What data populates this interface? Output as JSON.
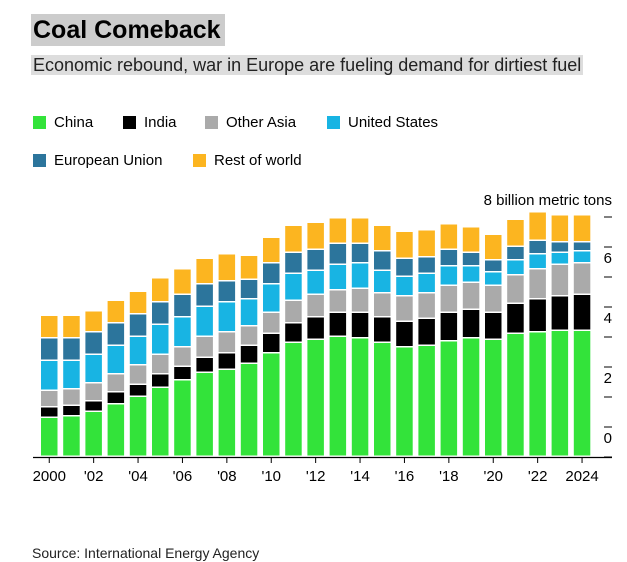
{
  "title": "Coal Comeback",
  "subtitle": "Economic rebound, war in Europe are fueling demand for dirtiest fuel",
  "source": "Source: International Energy Agency",
  "chart_data": {
    "type": "bar",
    "stacked": true,
    "unit_label": "8 billion metric tons",
    "ylim": [
      0,
      8
    ],
    "yticks": [
      0,
      2,
      4,
      6
    ],
    "x": [
      2000,
      2001,
      2002,
      2003,
      2004,
      2005,
      2006,
      2007,
      2008,
      2009,
      2010,
      2011,
      2012,
      2013,
      2014,
      2015,
      2016,
      2017,
      2018,
      2019,
      2020,
      2021,
      2022,
      2023,
      2024
    ],
    "xtick_labels": [
      "2000",
      "'02",
      "'04",
      "'06",
      "'08",
      "'10",
      "'12",
      "'14",
      "'16",
      "'18",
      "'20",
      "'22",
      "2024"
    ],
    "xtick_years": [
      2000,
      2002,
      2004,
      2006,
      2008,
      2010,
      2012,
      2014,
      2016,
      2018,
      2020,
      2022,
      2024
    ],
    "legend_position": "top",
    "series": [
      {
        "name": "China",
        "color": "#33e33a",
        "values": [
          1.3,
          1.35,
          1.5,
          1.75,
          2.0,
          2.3,
          2.55,
          2.8,
          2.9,
          3.1,
          3.45,
          3.8,
          3.9,
          4.0,
          3.95,
          3.8,
          3.65,
          3.7,
          3.85,
          3.95,
          3.9,
          4.1,
          4.15,
          4.2,
          4.2
        ]
      },
      {
        "name": "India",
        "color": "#000000",
        "values": [
          0.35,
          0.35,
          0.35,
          0.4,
          0.4,
          0.45,
          0.45,
          0.5,
          0.55,
          0.6,
          0.65,
          0.65,
          0.75,
          0.8,
          0.85,
          0.85,
          0.85,
          0.9,
          0.95,
          0.95,
          0.9,
          1.0,
          1.1,
          1.15,
          1.2
        ]
      },
      {
        "name": "Other Asia",
        "color": "#aaaaaa",
        "values": [
          0.55,
          0.55,
          0.6,
          0.6,
          0.65,
          0.65,
          0.65,
          0.7,
          0.7,
          0.65,
          0.7,
          0.75,
          0.75,
          0.75,
          0.8,
          0.8,
          0.85,
          0.85,
          0.9,
          0.9,
          0.9,
          0.95,
          1.0,
          1.05,
          1.05
        ]
      },
      {
        "name": "United States",
        "color": "#18b4e3",
        "values": [
          1.0,
          0.95,
          0.95,
          0.95,
          0.95,
          1.0,
          1.0,
          1.0,
          1.0,
          0.9,
          0.95,
          0.9,
          0.8,
          0.85,
          0.85,
          0.75,
          0.65,
          0.65,
          0.65,
          0.55,
          0.45,
          0.5,
          0.5,
          0.4,
          0.4
        ]
      },
      {
        "name": "European Union",
        "color": "#2c759c",
        "values": [
          0.75,
          0.75,
          0.75,
          0.75,
          0.75,
          0.75,
          0.75,
          0.75,
          0.7,
          0.65,
          0.7,
          0.7,
          0.7,
          0.7,
          0.65,
          0.65,
          0.6,
          0.55,
          0.55,
          0.45,
          0.4,
          0.45,
          0.45,
          0.35,
          0.3
        ]
      },
      {
        "name": "Rest of world",
        "color": "#fcb520",
        "values": [
          0.75,
          0.75,
          0.7,
          0.75,
          0.75,
          0.8,
          0.85,
          0.85,
          0.9,
          0.8,
          0.85,
          0.9,
          0.9,
          0.85,
          0.85,
          0.85,
          0.9,
          0.9,
          0.85,
          0.85,
          0.85,
          0.9,
          0.95,
          0.9,
          0.9
        ]
      }
    ]
  }
}
